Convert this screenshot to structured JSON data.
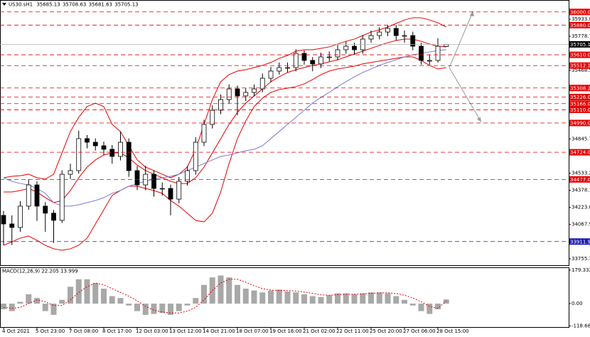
{
  "header": {
    "symbol": "US30.sH1",
    "ohlc": [
      35685.13,
      35708.63,
      35681.63,
      35705.13
    ]
  },
  "chart_data": [
    {
      "type": "candlestick",
      "categories": [
        "4 Oct 2021",
        null,
        null,
        null,
        "5 Oct 23:00",
        null,
        null,
        null,
        "7 Oct 08:00",
        null,
        null,
        null,
        "8 Oct 17:00",
        null,
        null,
        null,
        "12 Oct 03:00",
        null,
        null,
        null,
        "13 Oct 12:00",
        null,
        null,
        null,
        "14 Oct 21:00",
        null,
        null,
        null,
        "18 Oct 07:00",
        null,
        null,
        null,
        "19 Oct 16:00",
        null,
        null,
        null,
        "21 Oct 02:00",
        null,
        null,
        null,
        "22 Oct 11:00",
        null,
        null,
        null,
        "25 Oct 20:00",
        null,
        null,
        null,
        "27 Oct 06:00",
        null,
        null,
        null,
        "28 Oct 15:00",
        null
      ],
      "open": [
        34150,
        34072,
        34040,
        34234,
        34427,
        34234,
        34170,
        34105,
        34524,
        34557,
        34848,
        34815,
        34783,
        34751,
        34686,
        34815,
        34557,
        34427,
        34524,
        34395,
        34395,
        34298,
        34460,
        34557,
        34815,
        34977,
        35106,
        35203,
        35300,
        35236,
        35268,
        35300,
        35397,
        35462,
        35494,
        35494,
        35623,
        35559,
        35527,
        35591,
        35591,
        35656,
        35688,
        35656,
        35753,
        35785,
        35817,
        35850,
        35785,
        35785,
        35688,
        35559,
        35559,
        35685.13
      ],
      "high": [
        34190,
        34150,
        34280,
        34480,
        34460,
        34270,
        34200,
        34560,
        34620,
        34920,
        34880,
        34850,
        34820,
        34790,
        34910,
        34850,
        34600,
        34600,
        34560,
        34450,
        34430,
        34500,
        34600,
        34860,
        35020,
        35150,
        35250,
        35340,
        35330,
        35310,
        35340,
        35440,
        35500,
        35540,
        35540,
        35660,
        35650,
        35590,
        35630,
        35640,
        35700,
        35730,
        35720,
        35790,
        35830,
        35860,
        35880,
        35880,
        35830,
        35820,
        35720,
        35610,
        35760,
        35708.63
      ],
      "low": [
        33880,
        33880,
        34000,
        34200,
        34100,
        34000,
        33900,
        34080,
        34480,
        34530,
        34760,
        34740,
        34700,
        34620,
        34650,
        34500,
        34380,
        34380,
        34320,
        34330,
        34150,
        34260,
        34420,
        34520,
        34780,
        34940,
        35070,
        35170,
        35060,
        35190,
        35230,
        35270,
        35360,
        35430,
        35450,
        35460,
        35520,
        35460,
        35490,
        35550,
        35560,
        35620,
        35610,
        35620,
        35720,
        35750,
        35780,
        35740,
        35720,
        35650,
        35520,
        35520,
        35540,
        35681.63
      ],
      "close": [
        34072,
        34040,
        34234,
        34427,
        34234,
        34170,
        34105,
        34524,
        34557,
        34848,
        34815,
        34783,
        34751,
        34686,
        34815,
        34557,
        34427,
        34524,
        34395,
        34395,
        34298,
        34460,
        34557,
        34815,
        34977,
        35106,
        35203,
        35300,
        35236,
        35268,
        35300,
        35397,
        35462,
        35494,
        35494,
        35623,
        35559,
        35527,
        35591,
        35591,
        35656,
        35688,
        35656,
        35753,
        35785,
        35817,
        35850,
        35785,
        35785,
        35688,
        35559,
        35559,
        35688,
        35705.13
      ],
      "up_color": "#ffffff",
      "down_color": "#000000",
      "series": [
        {
          "color": "#e60000",
          "values": [
            34492,
            34505,
            34511,
            34524,
            34492,
            34479,
            34524,
            34718,
            34912,
            35042,
            35139,
            35171,
            35139,
            34977,
            34912,
            34783,
            34654,
            34589,
            34557,
            34524,
            34492,
            34524,
            34589,
            34751,
            34977,
            35203,
            35365,
            35430,
            35462,
            35475,
            35494,
            35514,
            35540,
            35578,
            35604,
            35643,
            35656,
            35656,
            35669,
            35682,
            35708,
            35733,
            35753,
            35785,
            35817,
            35837,
            35863,
            35895,
            35927,
            35947,
            35947,
            35927,
            35901,
            35863
          ]
        },
        {
          "color": "#e60000",
          "values": [
            34363,
            34363,
            34376,
            34395,
            34363,
            34311,
            34266,
            34285,
            34376,
            34492,
            34589,
            34654,
            34699,
            34718,
            34718,
            34673,
            34608,
            34557,
            34524,
            34492,
            34460,
            34440,
            34440,
            34492,
            34589,
            34718,
            34848,
            34977,
            35087,
            35171,
            35236,
            35300,
            35365,
            35410,
            35449,
            35475,
            35494,
            35514,
            35527,
            35546,
            35565,
            35591,
            35617,
            35643,
            35669,
            35695,
            35720,
            35740,
            35753,
            35753,
            35733,
            35708,
            35688,
            35682
          ]
        },
        {
          "color": "#e60000",
          "values": [
            33878,
            33910,
            33943,
            33962,
            33923,
            33878,
            33846,
            33833,
            33846,
            33878,
            33943,
            34072,
            34201,
            34331,
            34376,
            34415,
            34415,
            34395,
            34376,
            34350,
            34285,
            34234,
            34169,
            34104,
            34091,
            34169,
            34363,
            34621,
            34848,
            35009,
            35139,
            35216,
            35268,
            35294,
            35307,
            35320,
            35346,
            35385,
            35430,
            35462,
            35481,
            35494,
            35507,
            35527,
            35540,
            35553,
            35565,
            35578,
            35591,
            35591,
            35559,
            35514,
            35481,
            35494
          ]
        },
        {
          "color": "#7a7ad0",
          "values": [
            34492,
            34460,
            34440,
            34427,
            34395,
            34350,
            34266,
            34234,
            34234,
            34246,
            34266,
            34285,
            34311,
            34350,
            34376,
            34415,
            34440,
            34460,
            34479,
            34492,
            34505,
            34524,
            34557,
            34589,
            34621,
            34654,
            34686,
            34699,
            34718,
            34738,
            34751,
            34783,
            34848,
            34912,
            34977,
            35042,
            35106,
            35171,
            35223,
            35268,
            35320,
            35365,
            35410,
            35449,
            35481,
            35514,
            35540,
            35565,
            35591,
            35610,
            35623,
            35636,
            35649,
            35656
          ]
        }
      ],
      "levels": [
        {
          "value": 36000,
          "label": "36000.00",
          "color": "#e60000"
        },
        {
          "value": 35880,
          "label": "35880.00",
          "color": "#e60000"
        },
        {
          "value": 35610,
          "label": "35610.00",
          "color": "#e60000"
        },
        {
          "value": 35512.12,
          "label": "35512.12",
          "color": "#e60000"
        },
        {
          "value": 35308.23,
          "label": "35308.23",
          "color": "#e60000"
        },
        {
          "value": 35226,
          "label": "35226.00",
          "color": "#e60000"
        },
        {
          "value": 35166,
          "label": "35166.00",
          "color": "#e60000"
        },
        {
          "value": 35110,
          "label": "35110.00",
          "color": "#e60000"
        },
        {
          "value": 34990,
          "label": "34990.00",
          "color": "#e60000"
        },
        {
          "value": 34724,
          "label": "34724.00",
          "color": "#e60000"
        },
        {
          "value": 34477,
          "label": "34477.00",
          "color": "#e60000"
        },
        {
          "value": 33911.92,
          "label": "33911.92",
          "color": "#1a1ab4"
        }
      ],
      "current_price": 35705.13,
      "ylim": [
        33697,
        36076
      ],
      "yticks": [
        {
          "value": 35933.8,
          "label": "35933.80"
        },
        {
          "value": 35778.7,
          "label": "35778.70"
        },
        {
          "value": 35468.5,
          "label": "35468.50"
        },
        34845.75,
        {
          "value": 34533.2,
          "label": "34533.20"
        },
        {
          "value": 34378.1,
          "label": "34378.10"
        },
        {
          "value": 34223,
          "label": "34223.00"
        },
        {
          "value": 34067.9,
          "label": "34067.90"
        },
        33910.45,
        33755.35
      ]
    },
    {
      "type": "macd",
      "title": "MACD(12,26,9) 22.205 13.999",
      "histogram": {
        "color": "#a8a8a8",
        "values": [
          -30,
          -40,
          10,
          50,
          30,
          -40,
          -60,
          20,
          90,
          130,
          130,
          110,
          80,
          40,
          30,
          -10,
          -40,
          -60,
          -55,
          -50,
          -60,
          -40,
          -10,
          30,
          100,
          140,
          150,
          140,
          100,
          80,
          70,
          60,
          70,
          75,
          65,
          60,
          50,
          40,
          35,
          45,
          55,
          55,
          50,
          55,
          60,
          60,
          55,
          40,
          20,
          -10,
          -40,
          -55,
          -30,
          22.205
        ]
      },
      "signal": {
        "color": "#e60000",
        "values": [
          -20,
          -25,
          -20,
          0,
          20,
          10,
          -10,
          -10,
          20,
          60,
          90,
          110,
          100,
          80,
          60,
          40,
          15,
          -15,
          -35,
          -45,
          -50,
          -50,
          -40,
          -20,
          20,
          70,
          110,
          130,
          130,
          115,
          95,
          80,
          72,
          70,
          70,
          67,
          62,
          55,
          47,
          45,
          48,
          50,
          50,
          52,
          55,
          57,
          58,
          54,
          45,
          30,
          10,
          -15,
          -25,
          13.999
        ]
      },
      "ylim": [
        -125,
        190
      ],
      "yticks": [
        179.332,
        {
          "value": 0,
          "label": "0.00"
        },
        -118.68
      ]
    }
  ]
}
